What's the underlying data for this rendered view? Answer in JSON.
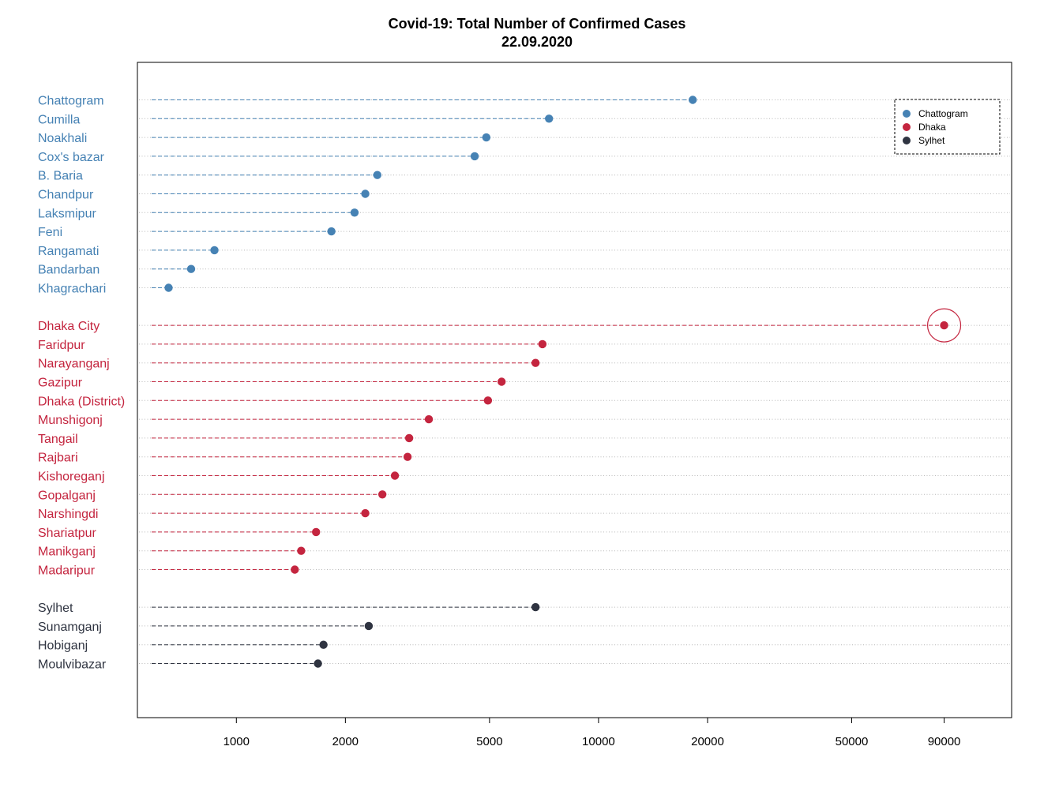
{
  "chart_data": {
    "type": "scatter",
    "title": "Covid-19: Total Number of Confirmed Cases",
    "subtitle": "22.09.2020",
    "x_scale": "log",
    "xlim": [
      650,
      118000
    ],
    "x_ticks": [
      {
        "value": 1000,
        "label": "1000"
      },
      {
        "value": 2000,
        "label": "2000"
      },
      {
        "value": 5000,
        "label": "5000"
      },
      {
        "value": 10000,
        "label": "10000"
      },
      {
        "value": 20000,
        "label": "20000"
      },
      {
        "value": 50000,
        "label": "50000"
      },
      {
        "value": 90000,
        "label": "90000"
      }
    ],
    "grid": true,
    "legend": {
      "position": "top-right",
      "entries": [
        "Chattogram",
        "Dhaka",
        "Sylhet"
      ]
    },
    "series": [
      {
        "name": "Chattogram",
        "color": "#4682B4",
        "points": [
          {
            "label": "Chattogram",
            "value": 18200
          },
          {
            "label": "Cumilla",
            "value": 7300
          },
          {
            "label": "Noakhali",
            "value": 4900
          },
          {
            "label": "Cox's bazar",
            "value": 4550
          },
          {
            "label": "B. Baria",
            "value": 2450
          },
          {
            "label": "Chandpur",
            "value": 2270
          },
          {
            "label": "Laksmipur",
            "value": 2120
          },
          {
            "label": "Feni",
            "value": 1830
          },
          {
            "label": "Rangamati",
            "value": 870
          },
          {
            "label": "Bandarban",
            "value": 750
          },
          {
            "label": "Khagrachari",
            "value": 650
          }
        ]
      },
      {
        "name": "Dhaka",
        "color": "#C4253F",
        "highlight": "Dhaka City",
        "points": [
          {
            "label": "Dhaka City",
            "value": 90000
          },
          {
            "label": "Faridpur",
            "value": 7000
          },
          {
            "label": "Narayanganj",
            "value": 6700
          },
          {
            "label": "Gazipur",
            "value": 5400
          },
          {
            "label": "Dhaka (District)",
            "value": 4950
          },
          {
            "label": "Munshigonj",
            "value": 3400
          },
          {
            "label": "Tangail",
            "value": 3000
          },
          {
            "label": "Rajbari",
            "value": 2970
          },
          {
            "label": "Kishoreganj",
            "value": 2740
          },
          {
            "label": "Gopalganj",
            "value": 2530
          },
          {
            "label": "Narshingdi",
            "value": 2270
          },
          {
            "label": "Shariatpur",
            "value": 1660
          },
          {
            "label": "Manikganj",
            "value": 1510
          },
          {
            "label": "Madaripur",
            "value": 1450
          }
        ]
      },
      {
        "name": "Sylhet",
        "color": "#2F3441",
        "points": [
          {
            "label": "Sylhet",
            "value": 6700
          },
          {
            "label": "Sunamganj",
            "value": 2320
          },
          {
            "label": "Hobiganj",
            "value": 1740
          },
          {
            "label": "Moulvibazar",
            "value": 1680
          }
        ]
      }
    ]
  }
}
